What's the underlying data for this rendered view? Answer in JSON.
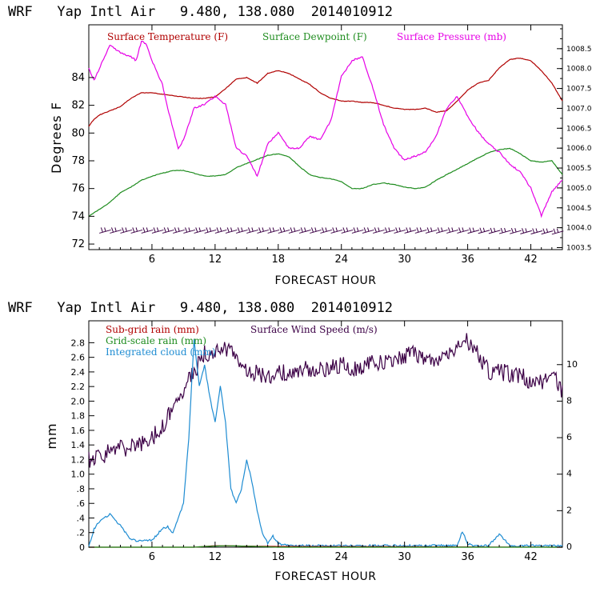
{
  "colors": {
    "temperature": "#b00000",
    "dewpoint": "#1e8c1e",
    "pressure": "#e600e6",
    "wind": "#3c0046",
    "cloud": "#1e8cd2",
    "subgrid": "#b00000",
    "gridscale": "#1e8c1e"
  },
  "chart_data": [
    {
      "type": "line",
      "title": "WRF   Yap Intl Air   9.480, 138.080  2014010912",
      "xlabel": "FORECAST HOUR",
      "ylabel": "Degrees F",
      "xlim": [
        0,
        45
      ],
      "ylim": [
        71.6,
        87.8
      ],
      "y2lim": [
        1003.45,
        1009.1
      ],
      "xticks": [
        "6",
        "12",
        "18",
        "24",
        "30",
        "36",
        "42"
      ],
      "yticks": [
        "72",
        "74",
        "76",
        "78",
        "80",
        "82",
        "84"
      ],
      "y2ticks": [
        "1003.5",
        "1004.0",
        "1004.5",
        "1005.0",
        "1005.5",
        "1006.0",
        "1006.5",
        "1007.0",
        "1007.5",
        "1008.0",
        "1008.5"
      ],
      "legend": [
        "Surface Temperature (F)",
        "Surface Dewpoint (F)",
        "Surface Pressure (mb)"
      ],
      "wind_barbs": {
        "y": 72.9,
        "count": 44
      },
      "series": [
        {
          "name": "Surface Temperature (F)",
          "axis": "left",
          "x": [
            0,
            0.5,
            1,
            2,
            3,
            4,
            5,
            6,
            7,
            8,
            9,
            10,
            11,
            12,
            13,
            14,
            15,
            16,
            17,
            18,
            19,
            20,
            21,
            22,
            23,
            24,
            25,
            26,
            27,
            28,
            29,
            30,
            31,
            32,
            33,
            34,
            35,
            36,
            37,
            38,
            39,
            40,
            41,
            42,
            43,
            44,
            45
          ],
          "y": [
            80.5,
            81.0,
            81.3,
            81.6,
            81.9,
            82.5,
            82.9,
            82.9,
            82.8,
            82.7,
            82.6,
            82.5,
            82.5,
            82.6,
            83.2,
            83.9,
            84.0,
            83.6,
            84.3,
            84.5,
            84.3,
            83.9,
            83.5,
            82.9,
            82.5,
            82.3,
            82.3,
            82.2,
            82.2,
            82.0,
            81.8,
            81.7,
            81.7,
            81.8,
            81.5,
            81.6,
            82.3,
            83.1,
            83.6,
            83.8,
            84.7,
            85.3,
            85.4,
            85.2,
            84.5,
            83.6,
            82.3
          ]
        },
        {
          "name": "Surface Dewpoint (F)",
          "axis": "left",
          "x": [
            0,
            1,
            2,
            3,
            4,
            5,
            6,
            7,
            8,
            9,
            10,
            11,
            12,
            13,
            14,
            15,
            16,
            17,
            18,
            19,
            20,
            21,
            22,
            23,
            24,
            25,
            26,
            27,
            28,
            29,
            30,
            31,
            32,
            33,
            34,
            35,
            36,
            37,
            38,
            39,
            40,
            41,
            42,
            43,
            44,
            45
          ],
          "y": [
            74.0,
            74.5,
            75.0,
            75.7,
            76.1,
            76.6,
            76.9,
            77.1,
            77.3,
            77.3,
            77.1,
            76.9,
            76.9,
            77.0,
            77.5,
            77.8,
            78.1,
            78.4,
            78.5,
            78.3,
            77.6,
            77.0,
            76.8,
            76.7,
            76.5,
            76.0,
            76.0,
            76.3,
            76.4,
            76.3,
            76.1,
            76.0,
            76.1,
            76.6,
            77.0,
            77.4,
            77.8,
            78.2,
            78.6,
            78.8,
            78.9,
            78.5,
            78.0,
            77.9,
            78.0,
            77.0
          ]
        },
        {
          "name": "Surface Pressure (mb)",
          "axis": "right",
          "x": [
            0,
            0.5,
            1,
            1.5,
            2,
            3,
            4,
            4.5,
            5,
            5.5,
            6,
            6.5,
            7,
            7.5,
            8,
            8.5,
            9,
            10,
            11,
            12,
            13,
            14,
            15,
            16,
            17,
            18,
            19,
            20,
            21,
            22,
            23,
            24,
            25,
            26,
            27,
            28,
            29,
            30,
            31,
            32,
            33,
            34,
            35,
            36,
            37,
            38,
            39,
            40,
            41,
            42,
            43,
            44,
            45
          ],
          "y": [
            1008.0,
            1007.7,
            1008.0,
            1008.3,
            1008.6,
            1008.4,
            1008.3,
            1008.2,
            1008.7,
            1008.6,
            1008.2,
            1007.9,
            1007.6,
            1007.0,
            1006.5,
            1006.0,
            1006.2,
            1007.0,
            1007.1,
            1007.3,
            1007.1,
            1006.0,
            1005.8,
            1005.3,
            1006.1,
            1006.4,
            1006.0,
            1006.0,
            1006.3,
            1006.2,
            1006.7,
            1007.8,
            1008.2,
            1008.3,
            1007.5,
            1006.6,
            1006.0,
            1005.7,
            1005.8,
            1005.9,
            1006.3,
            1007.0,
            1007.3,
            1006.8,
            1006.4,
            1006.1,
            1005.9,
            1005.6,
            1005.4,
            1005.0,
            1004.3,
            1004.9,
            1005.2
          ]
        }
      ]
    },
    {
      "type": "line",
      "title": "WRF   Yap Intl Air   9.480, 138.080  2014010912",
      "xlabel": "FORECAST HOUR",
      "ylabel": "mm",
      "xlim": [
        0,
        45
      ],
      "ylim": [
        0,
        3.1
      ],
      "y2lim": [
        0,
        12.4
      ],
      "xticks": [
        "6",
        "12",
        "18",
        "24",
        "30",
        "36",
        "42"
      ],
      "yticks": [
        "0",
        ".2",
        ".4",
        ".6",
        ".8",
        "1.0",
        "1.2",
        "1.4",
        "1.6",
        "1.8",
        "2.0",
        "2.2",
        "2.4",
        "2.6",
        "2.8"
      ],
      "y2ticks": [
        "0",
        "2",
        "4",
        "6",
        "8",
        "10"
      ],
      "legend": [
        "Sub-grid rain (mm)",
        "Surface Wind Speed (m/s)",
        "Grid-scale rain (mm)",
        "Integrated cloud (mm)"
      ],
      "series": [
        {
          "name": "Surface Wind Speed (m/s)",
          "axis": "right",
          "x": [
            0,
            1,
            2,
            3,
            4,
            5,
            6,
            7,
            8,
            9,
            10,
            11,
            12,
            13,
            14,
            15,
            16,
            17,
            18,
            19,
            20,
            21,
            22,
            23,
            24,
            25,
            26,
            27,
            28,
            29,
            30,
            31,
            32,
            33,
            34,
            35,
            36,
            37,
            38,
            39,
            40,
            41,
            42,
            43,
            44,
            45
          ],
          "y": [
            4.8,
            5.0,
            5.2,
            5.4,
            5.5,
            5.6,
            6.0,
            6.6,
            7.6,
            8.6,
            9.6,
            10.6,
            10.8,
            10.9,
            10.6,
            9.6,
            9.5,
            9.4,
            9.6,
            9.5,
            9.6,
            9.8,
            9.7,
            9.9,
            10.0,
            9.8,
            9.9,
            10.1,
            10.2,
            10.3,
            10.5,
            10.6,
            10.3,
            10.1,
            10.4,
            10.9,
            11.3,
            10.5,
            9.6,
            9.6,
            9.5,
            9.4,
            9.1,
            9.0,
            9.6,
            8.5
          ]
        },
        {
          "name": "Integrated cloud (mm)",
          "axis": "left",
          "x": [
            0,
            0.5,
            1,
            2,
            3,
            4,
            5,
            6,
            7,
            7.5,
            8,
            9,
            9.5,
            10,
            10.5,
            11,
            11.5,
            12,
            12.5,
            13,
            13.5,
            14,
            14.5,
            15,
            15.5,
            16,
            16.5,
            17,
            17.5,
            18,
            19,
            20,
            25,
            30,
            35,
            35.5,
            36,
            36.5,
            37,
            38,
            39,
            39.5,
            40,
            45
          ],
          "y": [
            0.0,
            0.25,
            0.35,
            0.45,
            0.3,
            0.1,
            0.08,
            0.1,
            0.25,
            0.28,
            0.2,
            0.6,
            1.5,
            2.85,
            2.2,
            2.5,
            2.05,
            1.7,
            2.2,
            1.7,
            0.8,
            0.6,
            0.8,
            1.2,
            0.9,
            0.5,
            0.2,
            0.05,
            0.15,
            0.05,
            0.02,
            0.02,
            0.02,
            0.02,
            0.02,
            0.22,
            0.05,
            0.02,
            0.02,
            0.02,
            0.18,
            0.1,
            0.02,
            0.02
          ]
        },
        {
          "name": "Sub-grid rain (mm)",
          "axis": "left",
          "x": [
            0,
            10,
            12,
            18,
            45
          ],
          "y": [
            0.0,
            0.0,
            0.02,
            0.01,
            0.0
          ]
        },
        {
          "name": "Grid-scale rain (mm)",
          "axis": "left",
          "x": [
            0,
            10,
            11,
            13,
            16,
            18,
            45
          ],
          "y": [
            0.0,
            0.0,
            0.01,
            0.02,
            0.01,
            0.0,
            0.0
          ]
        }
      ]
    }
  ]
}
